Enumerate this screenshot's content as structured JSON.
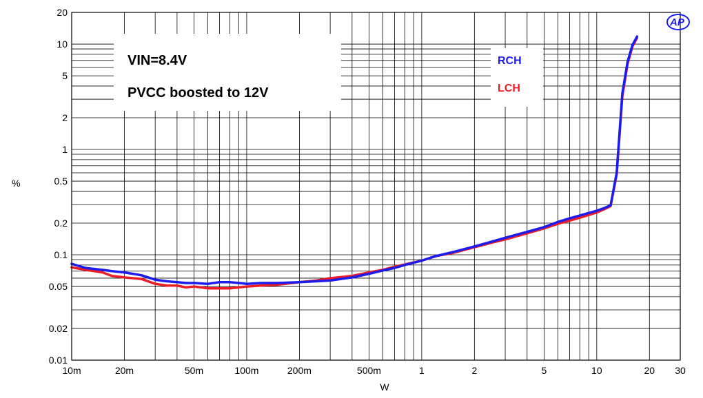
{
  "chart_data": {
    "type": "line",
    "xscale": "log",
    "yscale": "log",
    "xlim": [
      0.01,
      30
    ],
    "ylim": [
      0.01,
      20
    ],
    "xlabel": "W",
    "ylabel": "%",
    "grid": true,
    "x_ticks": [
      {
        "v": 0.01,
        "label": "10m"
      },
      {
        "v": 0.02,
        "label": "20m"
      },
      {
        "v": 0.05,
        "label": "50m"
      },
      {
        "v": 0.1,
        "label": "100m"
      },
      {
        "v": 0.2,
        "label": "200m"
      },
      {
        "v": 0.5,
        "label": "500m"
      },
      {
        "v": 1,
        "label": "1"
      },
      {
        "v": 2,
        "label": "2"
      },
      {
        "v": 5,
        "label": "5"
      },
      {
        "v": 10,
        "label": "10"
      },
      {
        "v": 20,
        "label": "20"
      },
      {
        "v": 30,
        "label": "30"
      }
    ],
    "y_ticks": [
      {
        "v": 0.01,
        "label": "0.01"
      },
      {
        "v": 0.02,
        "label": "0.02"
      },
      {
        "v": 0.05,
        "label": "0.05"
      },
      {
        "v": 0.1,
        "label": "0.1"
      },
      {
        "v": 0.2,
        "label": "0.2"
      },
      {
        "v": 0.5,
        "label": "0.5"
      },
      {
        "v": 1,
        "label": "1"
      },
      {
        "v": 2,
        "label": "2"
      },
      {
        "v": 5,
        "label": "5"
      },
      {
        "v": 10,
        "label": "10"
      },
      {
        "v": 20,
        "label": "20"
      }
    ],
    "annotations": [
      "VIN=8.4V",
      "PVCC boosted to 12V"
    ],
    "legend_position": "top-right",
    "series": [
      {
        "name": "LCH",
        "color": "#ee1c25",
        "x": [
          0.01,
          0.012,
          0.015,
          0.017,
          0.02,
          0.025,
          0.03,
          0.035,
          0.04,
          0.045,
          0.05,
          0.06,
          0.07,
          0.08,
          0.09,
          0.1,
          0.12,
          0.15,
          0.2,
          0.25,
          0.3,
          0.4,
          0.5,
          0.6,
          0.7,
          0.8,
          1,
          1.2,
          1.5,
          2,
          2.5,
          3,
          4,
          5,
          6,
          7,
          8,
          10,
          11,
          12,
          13,
          14,
          15,
          16,
          17
        ],
        "y": [
          0.076,
          0.072,
          0.068,
          0.063,
          0.061,
          0.059,
          0.053,
          0.051,
          0.051,
          0.049,
          0.05,
          0.048,
          0.048,
          0.048,
          0.049,
          0.05,
          0.051,
          0.052,
          0.055,
          0.057,
          0.06,
          0.063,
          0.068,
          0.072,
          0.077,
          0.081,
          0.088,
          0.097,
          0.104,
          0.118,
          0.13,
          0.14,
          0.16,
          0.178,
          0.197,
          0.211,
          0.225,
          0.252,
          0.27,
          0.29,
          0.58,
          3.2,
          6.5,
          9.5,
          11.5
        ]
      },
      {
        "name": "RCH",
        "color": "#1c1cee",
        "x": [
          0.01,
          0.012,
          0.015,
          0.017,
          0.02,
          0.025,
          0.03,
          0.035,
          0.04,
          0.045,
          0.05,
          0.06,
          0.07,
          0.08,
          0.09,
          0.1,
          0.12,
          0.15,
          0.2,
          0.25,
          0.3,
          0.4,
          0.5,
          0.6,
          0.7,
          0.8,
          1,
          1.2,
          1.5,
          2,
          2.5,
          3,
          4,
          5,
          6,
          7,
          8,
          10,
          11,
          12,
          13,
          14,
          15,
          16,
          17
        ],
        "y": [
          0.082,
          0.075,
          0.072,
          0.07,
          0.068,
          0.064,
          0.058,
          0.056,
          0.055,
          0.054,
          0.054,
          0.053,
          0.055,
          0.055,
          0.054,
          0.053,
          0.054,
          0.054,
          0.055,
          0.056,
          0.057,
          0.061,
          0.066,
          0.071,
          0.075,
          0.08,
          0.088,
          0.097,
          0.106,
          0.12,
          0.133,
          0.145,
          0.165,
          0.183,
          0.205,
          0.222,
          0.236,
          0.262,
          0.277,
          0.295,
          0.6,
          3.4,
          6.8,
          9.8,
          11.8
        ]
      }
    ]
  }
}
